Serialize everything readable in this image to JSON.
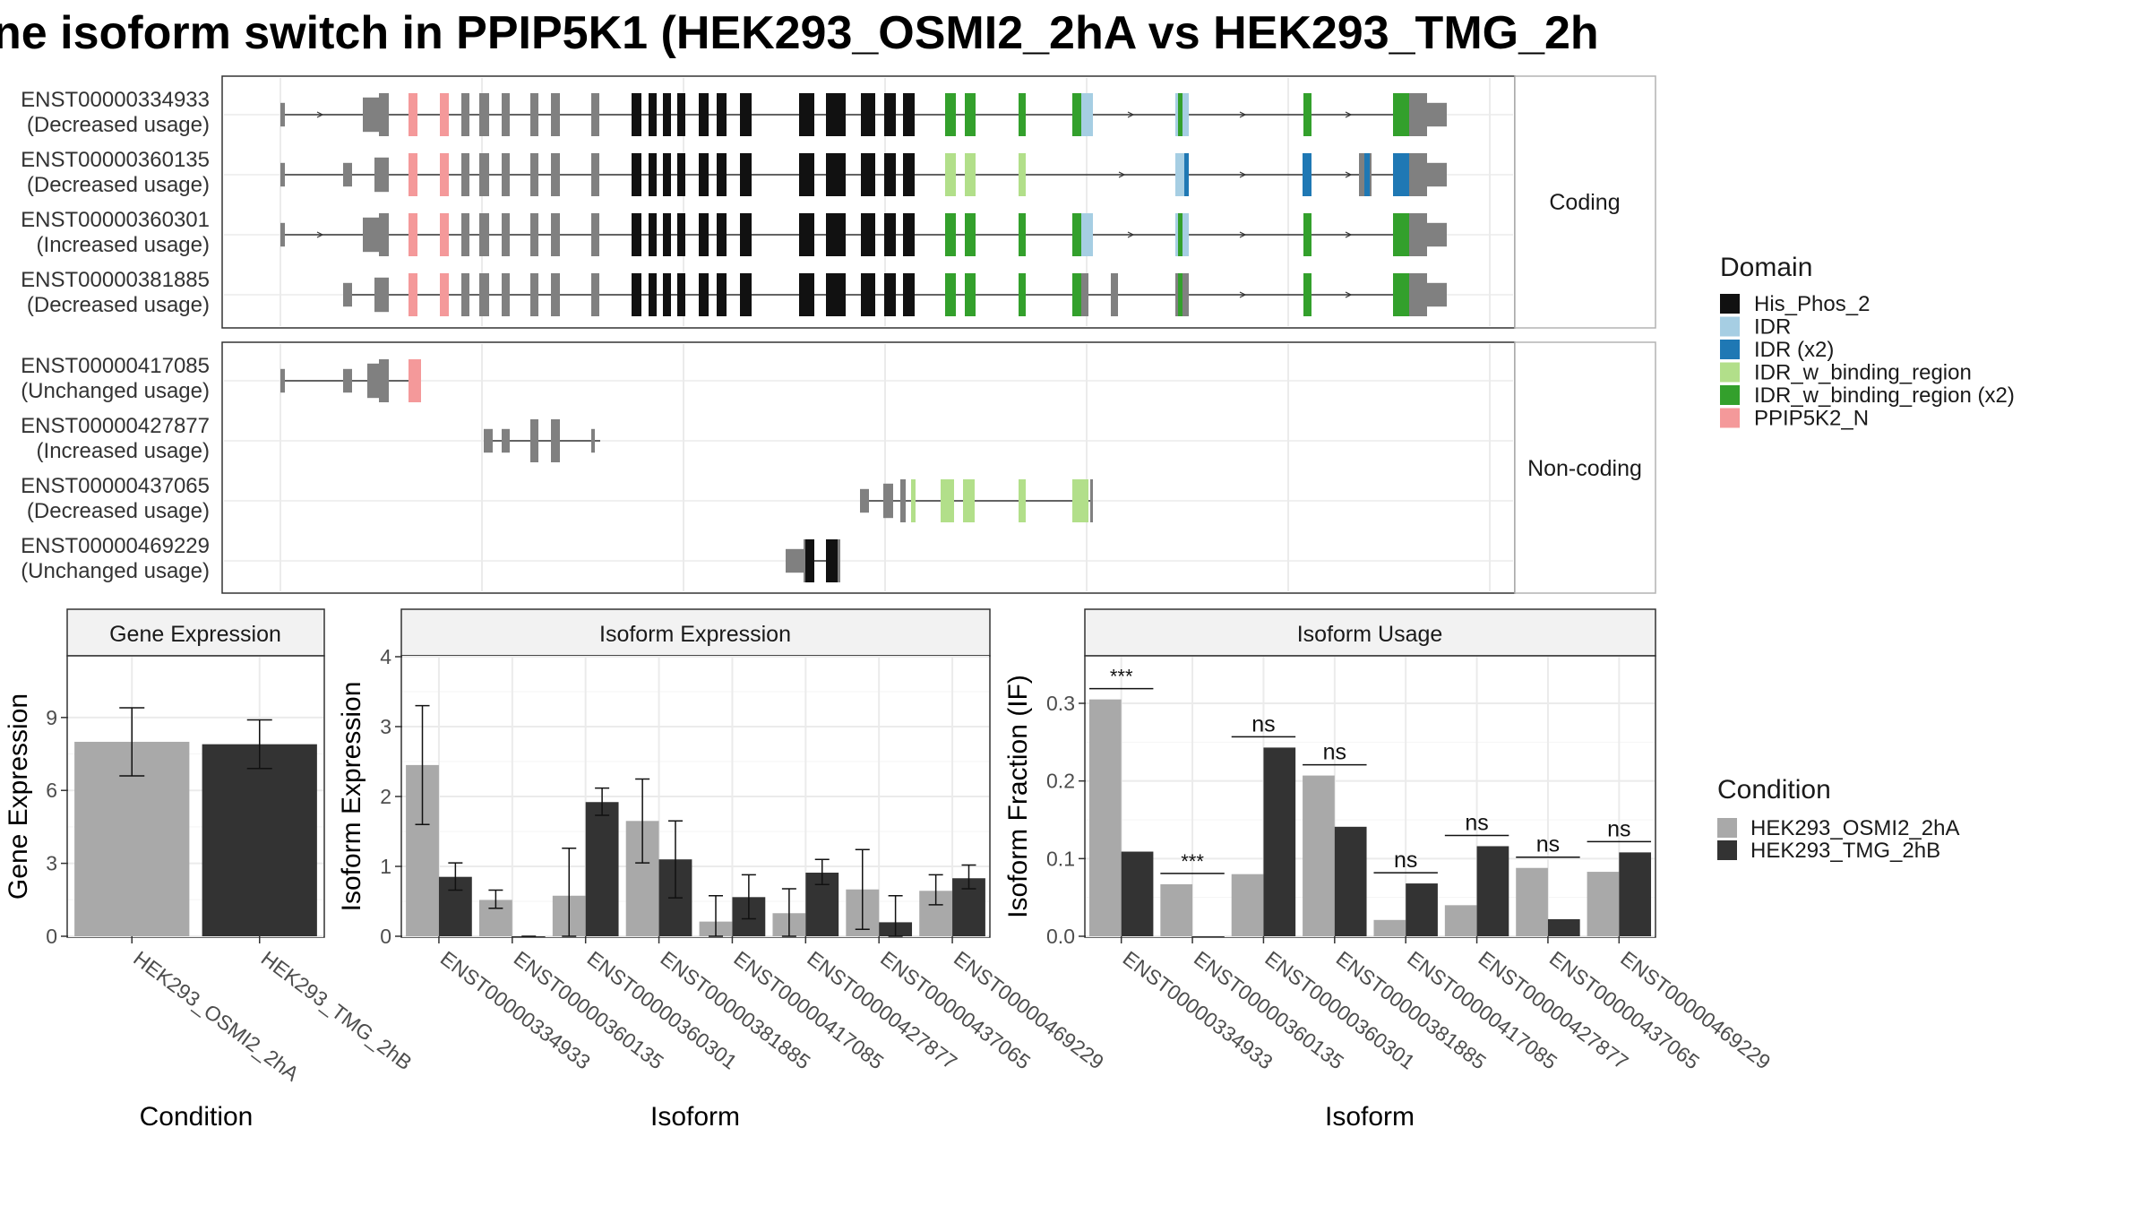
{
  "title": "ne isoform switch in PPIP5K1 (HEK293_OSMI2_2hA vs HEK293_TMG_2h",
  "colors": {
    "exon_gray": "#808080",
    "His_Phos_2": "#111111",
    "IDR": "#a6cee3",
    "IDR (x2)": "#1f78b4",
    "IDR_w_binding_region": "#b2df8a",
    "IDR_w_binding_region (x2)": "#33a02c",
    "PPIP5K2_N": "#f4999a",
    "cond_a": "#a9a9a9",
    "cond_b": "#333333",
    "panel_strip": "#f2f2f2",
    "grid": "#ebebeb"
  },
  "structure": {
    "groups": [
      {
        "label": "Coding",
        "transcripts": [
          {
            "id": "ENST00000334933",
            "usage": "(Decreased usage)"
          },
          {
            "id": "ENST00000360135",
            "usage": "(Decreased usage)"
          },
          {
            "id": "ENST00000360301",
            "usage": "(Increased usage)"
          },
          {
            "id": "ENST00000381885",
            "usage": "(Decreased usage)"
          }
        ]
      },
      {
        "label": "Non-coding",
        "transcripts": [
          {
            "id": "ENST00000417085",
            "usage": "(Unchanged usage)"
          },
          {
            "id": "ENST00000427877",
            "usage": "(Increased usage)"
          },
          {
            "id": "ENST00000437065",
            "usage": "(Decreased usage)"
          },
          {
            "id": "ENST00000469229",
            "usage": "(Unchanged usage)"
          }
        ]
      }
    ]
  },
  "legend_domain": {
    "title": "Domain",
    "items": [
      "His_Phos_2",
      "IDR",
      "IDR (x2)",
      "IDR_w_binding_region",
      "IDR_w_binding_region (x2)",
      "PPIP5K2_N"
    ]
  },
  "legend_condition": {
    "title": "Condition",
    "items": [
      "HEK293_OSMI2_2hA",
      "HEK293_TMG_2hB"
    ]
  },
  "chart_data": [
    {
      "type": "bar",
      "title": "Gene Expression",
      "xlabel": "Condition",
      "ylabel": "Gene Expression",
      "categories": [
        "HEK293_OSMI2_2hA",
        "HEK293_TMG_2hB"
      ],
      "values": [
        8.0,
        7.9
      ],
      "error": [
        [
          6.6,
          9.4
        ],
        [
          6.9,
          8.9
        ]
      ],
      "ylim": [
        0,
        11.5
      ],
      "yticks": [
        0,
        3,
        6,
        9
      ]
    },
    {
      "type": "bar",
      "title": "Isoform Expression",
      "xlabel": "Isoform",
      "ylabel": "Isoform Expression",
      "categories": [
        "ENST00000334933",
        "ENST00000360135",
        "ENST00000360301",
        "ENST00000381885",
        "ENST00000417085",
        "ENST00000427877",
        "ENST00000437065",
        "ENST00000469229"
      ],
      "series": [
        {
          "name": "HEK293_OSMI2_2hA",
          "values": [
            2.45,
            0.52,
            0.58,
            1.65,
            0.21,
            0.33,
            0.67,
            0.65
          ],
          "error": [
            [
              1.6,
              3.3
            ],
            [
              0.4,
              0.66
            ],
            [
              0.0,
              1.26
            ],
            [
              1.05,
              2.25
            ],
            [
              0.0,
              0.58
            ],
            [
              0.0,
              0.68
            ],
            [
              0.1,
              1.24
            ],
            [
              0.45,
              0.88
            ]
          ]
        },
        {
          "name": "HEK293_TMG_2hB",
          "values": [
            0.85,
            0.0,
            1.92,
            1.1,
            0.56,
            0.91,
            0.2,
            0.83
          ],
          "error": [
            [
              0.66,
              1.05
            ],
            [
              0.0,
              0.0
            ],
            [
              1.73,
              2.12
            ],
            [
              0.55,
              1.65
            ],
            [
              0.25,
              0.88
            ],
            [
              0.74,
              1.1
            ],
            [
              0.0,
              0.58
            ],
            [
              0.68,
              1.02
            ]
          ]
        }
      ],
      "ylim": [
        0,
        4
      ],
      "yticks": [
        0,
        1,
        2,
        3,
        4
      ]
    },
    {
      "type": "bar",
      "title": "Isoform Usage",
      "xlabel": "Isoform",
      "ylabel": "Isoform Fraction (IF)",
      "categories": [
        "ENST00000334933",
        "ENST00000360135",
        "ENST00000360301",
        "ENST00000381885",
        "ENST00000417085",
        "ENST00000427877",
        "ENST00000437065",
        "ENST00000469229"
      ],
      "series": [
        {
          "name": "HEK293_OSMI2_2hA",
          "values": [
            0.305,
            0.067,
            0.08,
            0.207,
            0.021,
            0.04,
            0.088,
            0.083
          ]
        },
        {
          "name": "HEK293_TMG_2hB",
          "values": [
            0.109,
            0.0,
            0.243,
            0.141,
            0.068,
            0.116,
            0.022,
            0.108
          ]
        }
      ],
      "significance": [
        "***",
        "***",
        "ns",
        "ns",
        "ns",
        "ns",
        "ns",
        "ns"
      ],
      "ylim": [
        0,
        0.36
      ],
      "yticks": [
        0.0,
        0.1,
        0.2,
        0.3
      ]
    }
  ]
}
